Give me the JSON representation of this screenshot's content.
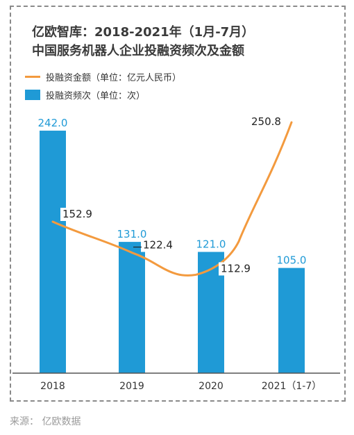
{
  "title_line1": "亿欧智库：2018-2021年（1月-7月）",
  "title_line2": "中国服务机器人企业投融资频次及金额",
  "legend": {
    "line_label": "投融资金额（单位：亿元人民币）",
    "bar_label": "投融资频次（单位：次）"
  },
  "source": "来源： 亿欧数据",
  "colors": {
    "bar": "#1f9ad6",
    "line": "#f39a3e",
    "bar_label": "#1f9ad6",
    "line_label": "#222222"
  },
  "chart_data": {
    "type": "bar+line",
    "categories": [
      "2018",
      "2019",
      "2020",
      "2021（1-7）"
    ],
    "series": [
      {
        "name": "投融资频次（单位：次）",
        "type": "bar",
        "values": [
          242.0,
          131.0,
          121.0,
          105.0
        ]
      },
      {
        "name": "投融资金额（单位：亿元人民币）",
        "type": "line",
        "values": [
          152.9,
          122.4,
          112.9,
          250.8
        ]
      }
    ],
    "bar_labels": [
      "242.0",
      "131.0",
      "121.0",
      "105.0"
    ],
    "line_labels": [
      "152.9",
      "122.4",
      "112.9",
      "250.8"
    ],
    "grid": false
  }
}
